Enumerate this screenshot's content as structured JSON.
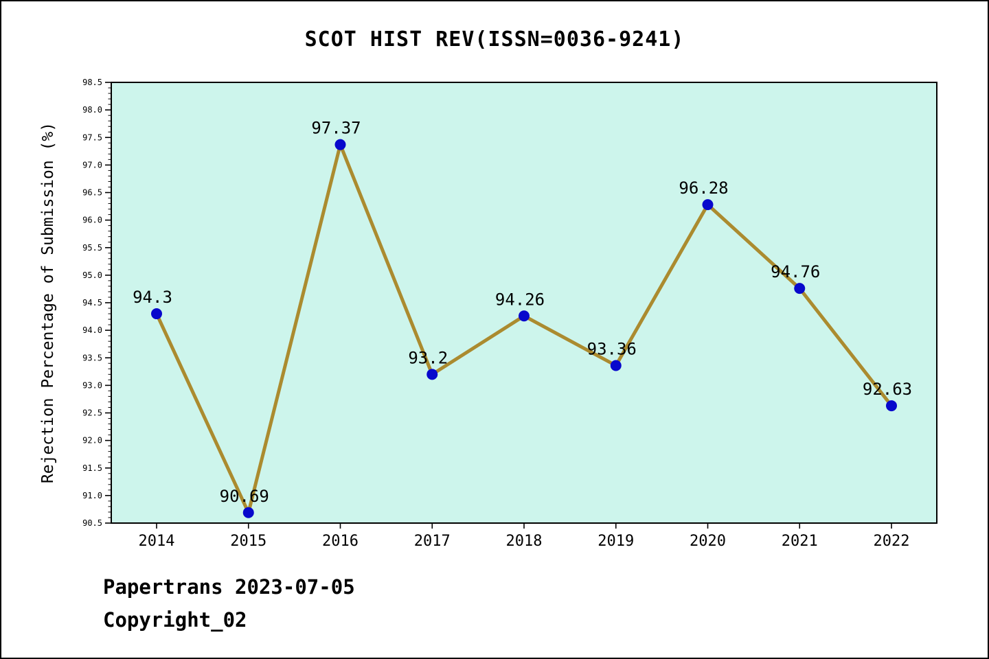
{
  "title": "SCOT HIST REV(ISSN=0036-9241)",
  "footer": {
    "line1": "Papertrans 2023-07-05",
    "line2": "Copyright_02"
  },
  "chart_data": {
    "type": "line",
    "title": "SCOT HIST REV(ISSN=0036-9241)",
    "xlabel": "",
    "ylabel": "Rejection Percentage of Submission (%)",
    "x": [
      2014,
      2015,
      2016,
      2017,
      2018,
      2019,
      2020,
      2021,
      2022
    ],
    "values": [
      94.3,
      90.69,
      97.37,
      93.2,
      94.26,
      93.36,
      96.28,
      94.76,
      92.63
    ],
    "point_labels": [
      "94.3",
      "90.69",
      "97.37",
      "93.2",
      "94.26",
      "93.36",
      "96.28",
      "94.76",
      "92.63"
    ],
    "ylim": [
      90.5,
      98.5
    ],
    "ytick_step": 0.5,
    "y_minor_step": 0.1,
    "grid": false,
    "legend": "none",
    "colors": {
      "line": "#ab8b2f",
      "marker": "#0808cc",
      "plot_bg": "#cdf5ec",
      "axis": "#000000",
      "text": "#000000",
      "page_bg": "#ffffff"
    }
  }
}
